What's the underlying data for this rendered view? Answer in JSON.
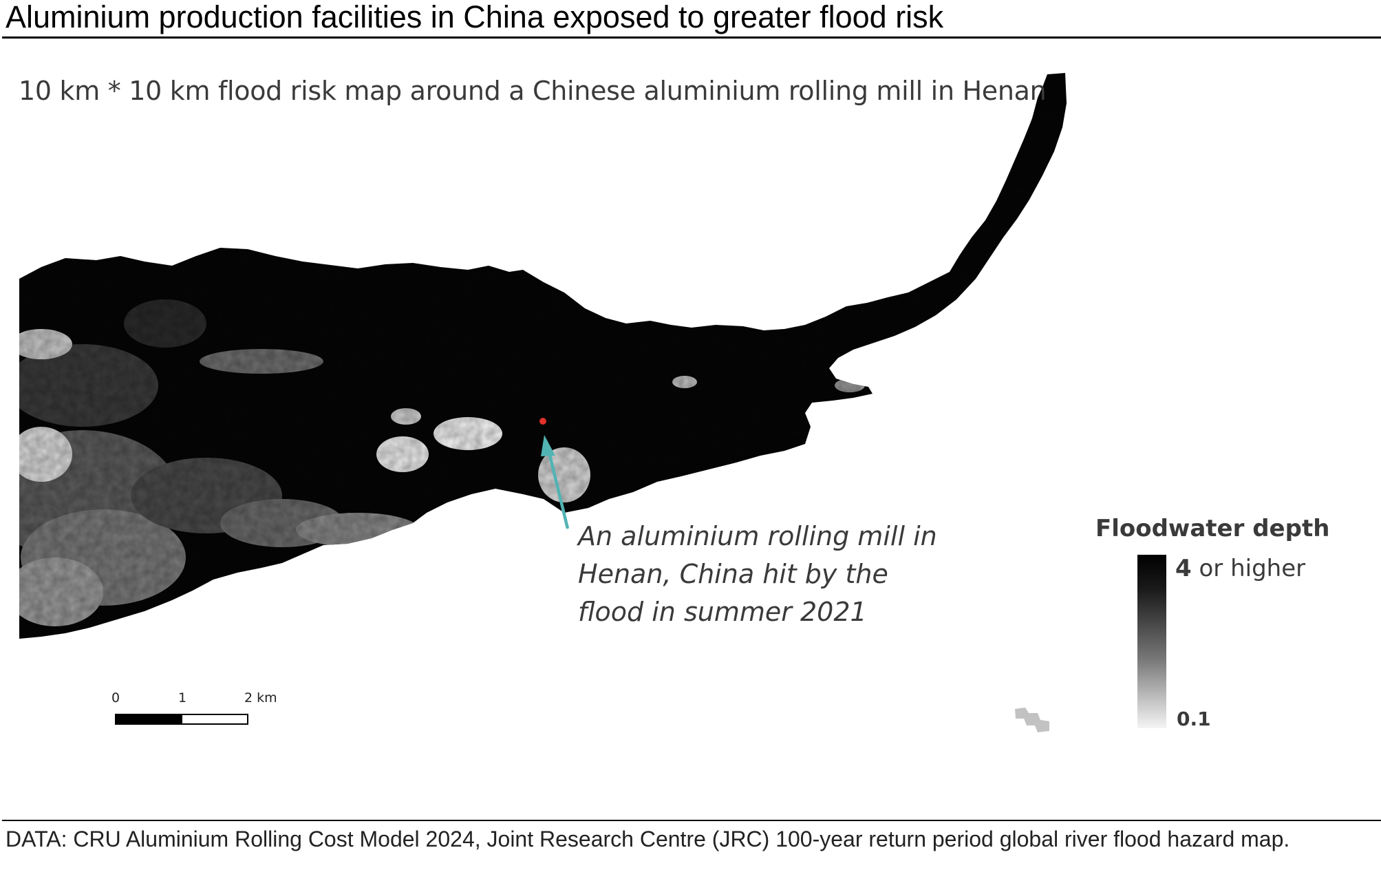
{
  "title": "Aluminium production facilities in China exposed to greater flood risk",
  "map": {
    "subtitle": "10 km * 10 km flood risk map around a Chinese aluminium rolling mill in Henan",
    "marker_color": "#e0312a",
    "arrow_color": "#52b3b3",
    "callout_lines": [
      "An aluminium rolling mill in",
      "Henan,  China hit by the",
      "flood in summer 2021"
    ],
    "legend": {
      "title": "Floodwater depth",
      "max_value": "4",
      "max_suffix": " or higher",
      "min_label": "0.1"
    },
    "scale": {
      "labels": [
        "0",
        "1",
        "2 km"
      ]
    }
  },
  "footer": "DATA: CRU Aluminium Rolling Cost Model 2024, Joint Research Centre (JRC) 100-year return period global river flood hazard map."
}
